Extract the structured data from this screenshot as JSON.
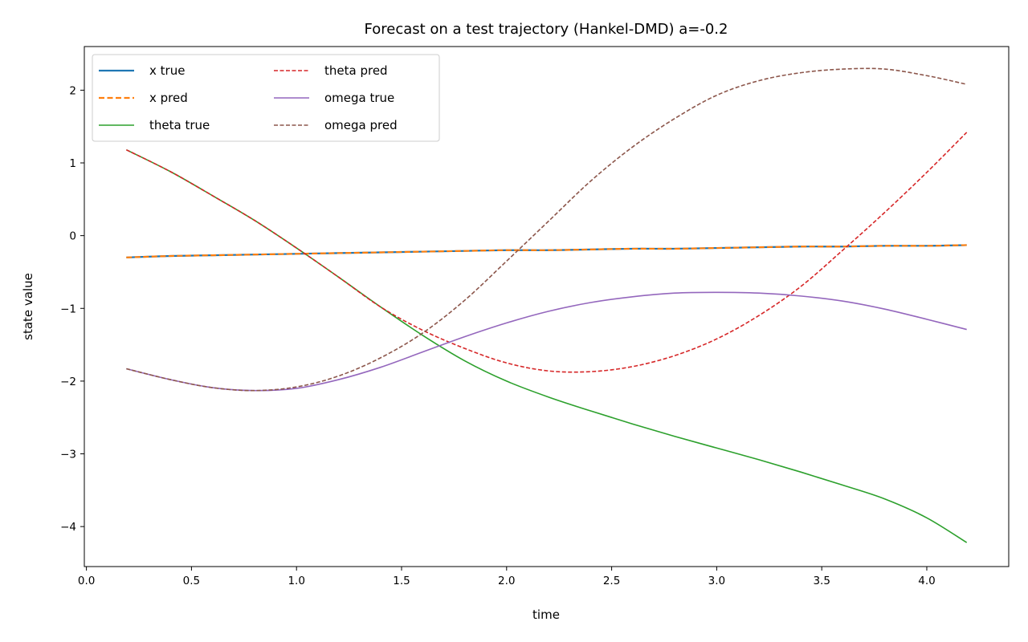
{
  "chart_data": {
    "type": "line",
    "title": "Forecast on a test trajectory (Hankel-DMD)  a=-0.2",
    "xlabel": "time",
    "ylabel": "state value",
    "xlim": [
      -0.01,
      4.39
    ],
    "ylim": [
      -4.55,
      2.6
    ],
    "x_ticks": [
      0.0,
      0.5,
      1.0,
      1.5,
      2.0,
      2.5,
      3.0,
      3.5,
      4.0
    ],
    "x_tick_labels": [
      "0.0",
      "0.5",
      "1.0",
      "1.5",
      "2.0",
      "2.5",
      "3.0",
      "3.5",
      "4.0"
    ],
    "y_ticks": [
      2,
      1,
      0,
      -1,
      -2,
      -3,
      -4
    ],
    "y_tick_labels": [
      "2",
      "1",
      "0",
      "−1",
      "−2",
      "−3",
      "−4"
    ],
    "grid": false,
    "legend": {
      "placement": "top-left",
      "columns": 2
    },
    "x": [
      0.19,
      0.4,
      0.6,
      0.8,
      1.0,
      1.2,
      1.4,
      1.6,
      1.8,
      2.0,
      2.2,
      2.4,
      2.6,
      2.8,
      3.0,
      3.2,
      3.4,
      3.6,
      3.8,
      4.0,
      4.19
    ],
    "series": [
      {
        "name": "x true",
        "color": "#1f77b4",
        "dash": "solid",
        "width": 2.2,
        "values": [
          -0.3,
          -0.28,
          -0.27,
          -0.26,
          -0.25,
          -0.24,
          -0.23,
          -0.22,
          -0.21,
          -0.2,
          -0.2,
          -0.19,
          -0.18,
          -0.18,
          -0.17,
          -0.16,
          -0.15,
          -0.15,
          -0.14,
          -0.14,
          -0.13
        ]
      },
      {
        "name": "x pred",
        "color": "#ff7f0e",
        "dash": "dashed-thick",
        "width": 2.2,
        "values": [
          -0.3,
          -0.28,
          -0.27,
          -0.26,
          -0.25,
          -0.24,
          -0.23,
          -0.22,
          -0.21,
          -0.2,
          -0.2,
          -0.19,
          -0.18,
          -0.18,
          -0.17,
          -0.16,
          -0.15,
          -0.15,
          -0.14,
          -0.14,
          -0.13
        ]
      },
      {
        "name": "theta true",
        "color": "#2ca02c",
        "dash": "solid",
        "width": 1.6,
        "values": [
          1.18,
          0.88,
          0.55,
          0.21,
          -0.17,
          -0.57,
          -0.98,
          -1.37,
          -1.72,
          -2.0,
          -2.22,
          -2.41,
          -2.59,
          -2.76,
          -2.92,
          -3.08,
          -3.25,
          -3.43,
          -3.62,
          -3.88,
          -4.22
        ]
      },
      {
        "name": "theta pred",
        "color": "#d62728",
        "dash": "dashed",
        "width": 1.6,
        "values": [
          1.18,
          0.88,
          0.55,
          0.21,
          -0.17,
          -0.57,
          -0.98,
          -1.3,
          -1.55,
          -1.75,
          -1.86,
          -1.87,
          -1.8,
          -1.65,
          -1.42,
          -1.1,
          -0.7,
          -0.2,
          0.32,
          0.87,
          1.42
        ]
      },
      {
        "name": "omega true",
        "color": "#9467bd",
        "dash": "solid",
        "width": 1.6,
        "values": [
          -1.83,
          -1.98,
          -2.09,
          -2.13,
          -2.1,
          -1.98,
          -1.81,
          -1.6,
          -1.39,
          -1.2,
          -1.04,
          -0.92,
          -0.84,
          -0.79,
          -0.78,
          -0.79,
          -0.83,
          -0.9,
          -1.01,
          -1.15,
          -1.29
        ]
      },
      {
        "name": "omega pred",
        "color": "#8c564b",
        "dash": "dashed",
        "width": 1.6,
        "values": [
          -1.83,
          -1.98,
          -2.09,
          -2.13,
          -2.08,
          -1.93,
          -1.68,
          -1.34,
          -0.89,
          -0.35,
          0.2,
          0.75,
          1.22,
          1.61,
          1.93,
          2.13,
          2.24,
          2.29,
          2.29,
          2.2,
          2.08
        ]
      }
    ]
  }
}
